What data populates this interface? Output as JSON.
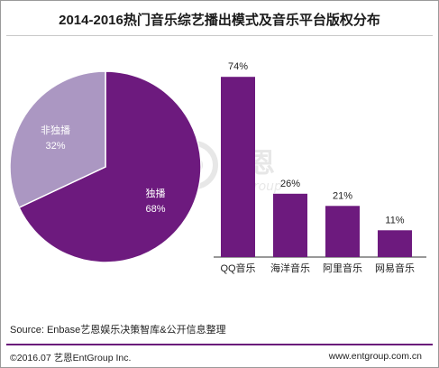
{
  "title": "2014-2016热门音乐综艺播出模式及音乐平台版权分布",
  "source": "Source: Enbase艺恩娱乐决策智库&公开信息整理",
  "footer": {
    "copyright": "©2016.07 艺恩EntGroup Inc.",
    "website": "www.entgroup.com.cn"
  },
  "watermark": {
    "cn": "艺恩",
    "en": "entgroup"
  },
  "colors": {
    "primary": "#6d1a7e",
    "secondary": "#ab97c2",
    "footer_rule": "#6a1b7a"
  },
  "chart_data": [
    {
      "type": "pie",
      "slices": [
        {
          "label": "独播",
          "value": 68,
          "display": "68%"
        },
        {
          "label": "非独播",
          "value": 32,
          "display": "32%"
        }
      ]
    },
    {
      "type": "bar",
      "categories": [
        "QQ音乐",
        "海洋音乐",
        "阿里音乐",
        "网易音乐"
      ],
      "values": [
        74,
        26,
        21,
        11
      ],
      "labels": [
        "74%",
        "26%",
        "21%",
        "11%"
      ],
      "ylim": [
        0,
        80
      ]
    }
  ]
}
